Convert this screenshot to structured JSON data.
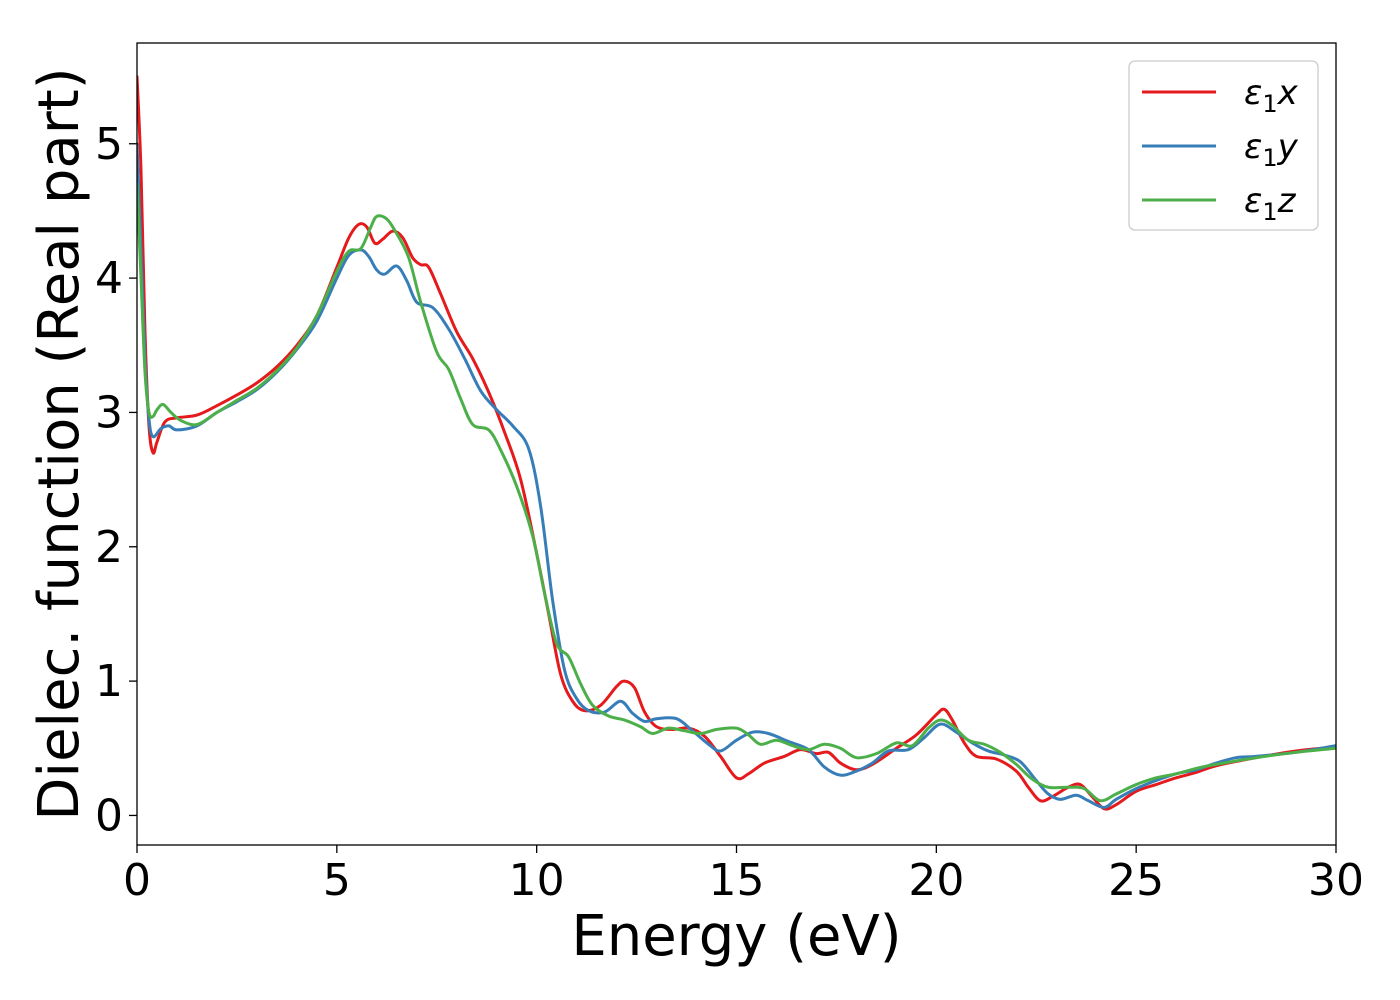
{
  "chart_data": {
    "type": "line",
    "xlabel": "Energy (eV)",
    "ylabel": "Dielec. function (Real part)",
    "xlim": [
      0,
      30
    ],
    "ylim": [
      -0.22,
      5.75
    ],
    "xticks": [
      0,
      5,
      10,
      15,
      20,
      25,
      30
    ],
    "yticks": [
      0,
      1,
      2,
      3,
      4,
      5
    ],
    "grid": false,
    "legend_position": "top-right",
    "series": [
      {
        "name": "ε₁x",
        "legend_main": "ε",
        "legend_sub": "1",
        "legend_var": "x",
        "color": "#e41a1c",
        "points": [
          [
            0.0,
            5.5
          ],
          [
            0.1,
            4.8
          ],
          [
            0.2,
            3.6
          ],
          [
            0.3,
            2.9
          ],
          [
            0.4,
            2.7
          ],
          [
            0.5,
            2.78
          ],
          [
            0.7,
            2.93
          ],
          [
            1.0,
            2.96
          ],
          [
            1.5,
            2.98
          ],
          [
            2.0,
            3.05
          ],
          [
            2.5,
            3.13
          ],
          [
            3.0,
            3.22
          ],
          [
            3.5,
            3.34
          ],
          [
            4.0,
            3.5
          ],
          [
            4.5,
            3.72
          ],
          [
            5.0,
            4.08
          ],
          [
            5.3,
            4.3
          ],
          [
            5.55,
            4.4
          ],
          [
            5.75,
            4.38
          ],
          [
            5.95,
            4.26
          ],
          [
            6.15,
            4.29
          ],
          [
            6.4,
            4.35
          ],
          [
            6.65,
            4.3
          ],
          [
            6.9,
            4.15
          ],
          [
            7.1,
            4.1
          ],
          [
            7.3,
            4.08
          ],
          [
            7.6,
            3.88
          ],
          [
            8.0,
            3.6
          ],
          [
            8.4,
            3.4
          ],
          [
            8.8,
            3.15
          ],
          [
            9.2,
            2.85
          ],
          [
            9.6,
            2.5
          ],
          [
            10.0,
            1.95
          ],
          [
            10.3,
            1.5
          ],
          [
            10.6,
            1.05
          ],
          [
            10.9,
            0.85
          ],
          [
            11.2,
            0.78
          ],
          [
            11.6,
            0.82
          ],
          [
            12.0,
            0.96
          ],
          [
            12.2,
            1.0
          ],
          [
            12.45,
            0.95
          ],
          [
            12.7,
            0.77
          ],
          [
            13.0,
            0.66
          ],
          [
            13.4,
            0.64
          ],
          [
            13.8,
            0.65
          ],
          [
            14.2,
            0.59
          ],
          [
            14.6,
            0.44
          ],
          [
            15.0,
            0.28
          ],
          [
            15.3,
            0.31
          ],
          [
            15.7,
            0.39
          ],
          [
            16.2,
            0.44
          ],
          [
            16.6,
            0.49
          ],
          [
            17.0,
            0.46
          ],
          [
            17.3,
            0.47
          ],
          [
            17.6,
            0.39
          ],
          [
            18.0,
            0.34
          ],
          [
            18.4,
            0.38
          ],
          [
            19.0,
            0.5
          ],
          [
            19.5,
            0.6
          ],
          [
            20.0,
            0.75
          ],
          [
            20.2,
            0.79
          ],
          [
            20.4,
            0.71
          ],
          [
            20.7,
            0.54
          ],
          [
            21.0,
            0.44
          ],
          [
            21.5,
            0.42
          ],
          [
            22.0,
            0.33
          ],
          [
            22.3,
            0.21
          ],
          [
            22.6,
            0.11
          ],
          [
            22.9,
            0.14
          ],
          [
            23.3,
            0.21
          ],
          [
            23.6,
            0.23
          ],
          [
            23.9,
            0.14
          ],
          [
            24.2,
            0.05
          ],
          [
            24.5,
            0.08
          ],
          [
            25.0,
            0.18
          ],
          [
            25.5,
            0.23
          ],
          [
            26.0,
            0.28
          ],
          [
            26.5,
            0.32
          ],
          [
            27.0,
            0.37
          ],
          [
            28.0,
            0.43
          ],
          [
            29.0,
            0.48
          ],
          [
            30.0,
            0.51
          ]
        ]
      },
      {
        "name": "ε₁y",
        "legend_main": "ε",
        "legend_sub": "1",
        "legend_var": "y",
        "color": "#377eb8",
        "points": [
          [
            0.0,
            5.0
          ],
          [
            0.1,
            4.2
          ],
          [
            0.2,
            3.4
          ],
          [
            0.3,
            2.95
          ],
          [
            0.4,
            2.82
          ],
          [
            0.6,
            2.88
          ],
          [
            0.8,
            2.9
          ],
          [
            1.0,
            2.87
          ],
          [
            1.5,
            2.9
          ],
          [
            2.0,
            3.0
          ],
          [
            2.5,
            3.08
          ],
          [
            3.0,
            3.17
          ],
          [
            3.5,
            3.3
          ],
          [
            4.0,
            3.47
          ],
          [
            4.5,
            3.68
          ],
          [
            5.0,
            4.0
          ],
          [
            5.3,
            4.17
          ],
          [
            5.6,
            4.21
          ],
          [
            5.8,
            4.16
          ],
          [
            6.0,
            4.06
          ],
          [
            6.2,
            4.03
          ],
          [
            6.5,
            4.09
          ],
          [
            6.75,
            3.98
          ],
          [
            7.0,
            3.82
          ],
          [
            7.4,
            3.78
          ],
          [
            7.8,
            3.62
          ],
          [
            8.2,
            3.4
          ],
          [
            8.6,
            3.16
          ],
          [
            9.0,
            3.02
          ],
          [
            9.4,
            2.9
          ],
          [
            9.8,
            2.73
          ],
          [
            10.1,
            2.3
          ],
          [
            10.4,
            1.6
          ],
          [
            10.7,
            1.08
          ],
          [
            11.0,
            0.87
          ],
          [
            11.3,
            0.78
          ],
          [
            11.7,
            0.77
          ],
          [
            12.1,
            0.85
          ],
          [
            12.4,
            0.76
          ],
          [
            12.7,
            0.7
          ],
          [
            13.0,
            0.72
          ],
          [
            13.5,
            0.72
          ],
          [
            13.9,
            0.63
          ],
          [
            14.3,
            0.53
          ],
          [
            14.6,
            0.48
          ],
          [
            15.0,
            0.56
          ],
          [
            15.4,
            0.62
          ],
          [
            15.8,
            0.61
          ],
          [
            16.3,
            0.55
          ],
          [
            16.8,
            0.49
          ],
          [
            17.2,
            0.36
          ],
          [
            17.6,
            0.3
          ],
          [
            18.0,
            0.33
          ],
          [
            18.4,
            0.39
          ],
          [
            18.8,
            0.48
          ],
          [
            19.3,
            0.49
          ],
          [
            19.7,
            0.58
          ],
          [
            20.1,
            0.68
          ],
          [
            20.5,
            0.62
          ],
          [
            20.9,
            0.54
          ],
          [
            21.3,
            0.48
          ],
          [
            21.7,
            0.45
          ],
          [
            22.1,
            0.4
          ],
          [
            22.5,
            0.26
          ],
          [
            22.8,
            0.16
          ],
          [
            23.1,
            0.12
          ],
          [
            23.5,
            0.15
          ],
          [
            23.8,
            0.11
          ],
          [
            24.2,
            0.06
          ],
          [
            24.5,
            0.12
          ],
          [
            25.0,
            0.2
          ],
          [
            25.5,
            0.26
          ],
          [
            26.0,
            0.31
          ],
          [
            26.5,
            0.34
          ],
          [
            27.0,
            0.39
          ],
          [
            27.5,
            0.43
          ],
          [
            28.0,
            0.44
          ],
          [
            29.0,
            0.47
          ],
          [
            30.0,
            0.52
          ]
        ]
      },
      {
        "name": "ε₁z",
        "legend_main": "ε",
        "legend_sub": "1",
        "legend_var": "z",
        "color": "#4daf4a",
        "points": [
          [
            0.0,
            4.7
          ],
          [
            0.1,
            4.0
          ],
          [
            0.2,
            3.3
          ],
          [
            0.3,
            3.0
          ],
          [
            0.4,
            2.97
          ],
          [
            0.5,
            3.02
          ],
          [
            0.65,
            3.06
          ],
          [
            0.85,
            3.0
          ],
          [
            1.1,
            2.94
          ],
          [
            1.5,
            2.91
          ],
          [
            2.0,
            3.0
          ],
          [
            2.5,
            3.09
          ],
          [
            3.0,
            3.18
          ],
          [
            3.5,
            3.31
          ],
          [
            4.0,
            3.48
          ],
          [
            4.5,
            3.72
          ],
          [
            5.0,
            4.05
          ],
          [
            5.3,
            4.2
          ],
          [
            5.6,
            4.22
          ],
          [
            5.85,
            4.38
          ],
          [
            6.0,
            4.46
          ],
          [
            6.25,
            4.44
          ],
          [
            6.5,
            4.33
          ],
          [
            6.8,
            4.15
          ],
          [
            7.1,
            3.82
          ],
          [
            7.5,
            3.45
          ],
          [
            7.8,
            3.32
          ],
          [
            8.1,
            3.1
          ],
          [
            8.4,
            2.91
          ],
          [
            8.8,
            2.87
          ],
          [
            9.1,
            2.72
          ],
          [
            9.5,
            2.45
          ],
          [
            9.9,
            2.08
          ],
          [
            10.2,
            1.65
          ],
          [
            10.5,
            1.28
          ],
          [
            10.8,
            1.18
          ],
          [
            11.1,
            0.98
          ],
          [
            11.4,
            0.82
          ],
          [
            11.8,
            0.74
          ],
          [
            12.2,
            0.71
          ],
          [
            12.6,
            0.66
          ],
          [
            12.9,
            0.61
          ],
          [
            13.3,
            0.65
          ],
          [
            13.7,
            0.63
          ],
          [
            14.1,
            0.61
          ],
          [
            14.5,
            0.64
          ],
          [
            15.0,
            0.65
          ],
          [
            15.3,
            0.6
          ],
          [
            15.6,
            0.53
          ],
          [
            16.0,
            0.56
          ],
          [
            16.4,
            0.52
          ],
          [
            16.8,
            0.49
          ],
          [
            17.2,
            0.53
          ],
          [
            17.6,
            0.5
          ],
          [
            18.0,
            0.43
          ],
          [
            18.5,
            0.46
          ],
          [
            19.0,
            0.54
          ],
          [
            19.4,
            0.52
          ],
          [
            19.8,
            0.65
          ],
          [
            20.1,
            0.71
          ],
          [
            20.4,
            0.67
          ],
          [
            20.8,
            0.56
          ],
          [
            21.2,
            0.53
          ],
          [
            21.6,
            0.47
          ],
          [
            22.0,
            0.38
          ],
          [
            22.4,
            0.27
          ],
          [
            22.8,
            0.21
          ],
          [
            23.3,
            0.21
          ],
          [
            23.7,
            0.2
          ],
          [
            24.1,
            0.11
          ],
          [
            24.5,
            0.16
          ],
          [
            25.0,
            0.23
          ],
          [
            25.5,
            0.28
          ],
          [
            26.0,
            0.31
          ],
          [
            26.5,
            0.35
          ],
          [
            27.0,
            0.38
          ],
          [
            28.0,
            0.43
          ],
          [
            29.0,
            0.47
          ],
          [
            30.0,
            0.5
          ]
        ]
      }
    ]
  }
}
